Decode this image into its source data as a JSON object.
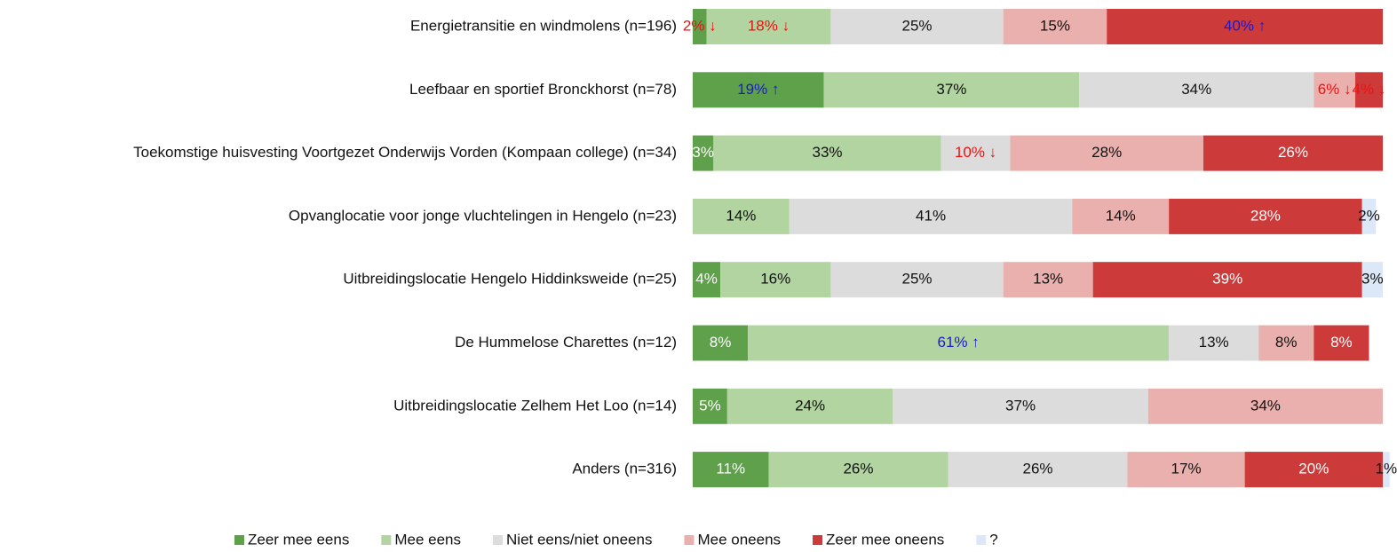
{
  "chart_data": {
    "type": "stacked_barh",
    "categories": [
      "Energietransitie en windmolens (n=196)",
      "Leefbaar en sportief Bronckhorst (n=78)",
      "Toekomstige huisvesting Voortgezet Onderwijs Vorden (Kompaan college) (n=34)",
      "Opvanglocatie voor jonge vluchtelingen in Hengelo (n=23)",
      "Uitbreidingslocatie Hengelo Hiddinksweide (n=25)",
      "De Hummelose Charettes (n=12)",
      "Uitbreidingslocatie Zelhem Het Loo (n=14)",
      "Anders (n=316)"
    ],
    "xlim": [
      0,
      100
    ],
    "legend": "bottom",
    "series": [
      {
        "name": "Zeer mee eens",
        "color": "#5fa04a",
        "values": [
          2,
          19,
          3,
          null,
          4,
          8,
          5,
          11
        ],
        "value_labels": [
          "2% ↓",
          "19% ↑",
          "3%",
          null,
          "4%",
          "8%",
          "5%",
          "11%"
        ]
      },
      {
        "name": "Mee eens",
        "color": "#b2d4a0",
        "values": [
          18,
          37,
          33,
          14,
          16,
          61,
          24,
          26
        ],
        "value_labels": [
          "18% ↓",
          "37%",
          "33%",
          "14%",
          "16%",
          "61% ↑",
          "24%",
          "26%"
        ]
      },
      {
        "name": "Niet eens/niet oneens",
        "color": "#dcdcdc",
        "values": [
          25,
          34,
          10,
          41,
          25,
          13,
          37,
          26
        ],
        "value_labels": [
          "25%",
          "34%",
          "10% ↓",
          "41%",
          "25%",
          "13%",
          "37%",
          "26%"
        ]
      },
      {
        "name": "Mee oneens",
        "color": "#eab0ae",
        "values": [
          15,
          6,
          28,
          14,
          13,
          8,
          34,
          17
        ],
        "value_labels": [
          "15%",
          "6% ↓",
          "28%",
          "14%",
          "13%",
          "8%",
          "34%",
          "17%"
        ]
      },
      {
        "name": "Zeer mee oneens",
        "color": "#cc3a3a",
        "values": [
          40,
          4,
          26,
          28,
          39,
          8,
          null,
          20
        ],
        "value_labels": [
          "40% ↑",
          "4% ↓",
          "26%",
          "28%",
          "39%",
          "8%",
          null,
          "20%"
        ]
      },
      {
        "name": "?",
        "color": "#dce8f7",
        "values": [
          null,
          null,
          null,
          2,
          3,
          null,
          null,
          1
        ],
        "value_labels": [
          null,
          null,
          null,
          "2%",
          "3%",
          null,
          null,
          "1%"
        ]
      }
    ]
  }
}
